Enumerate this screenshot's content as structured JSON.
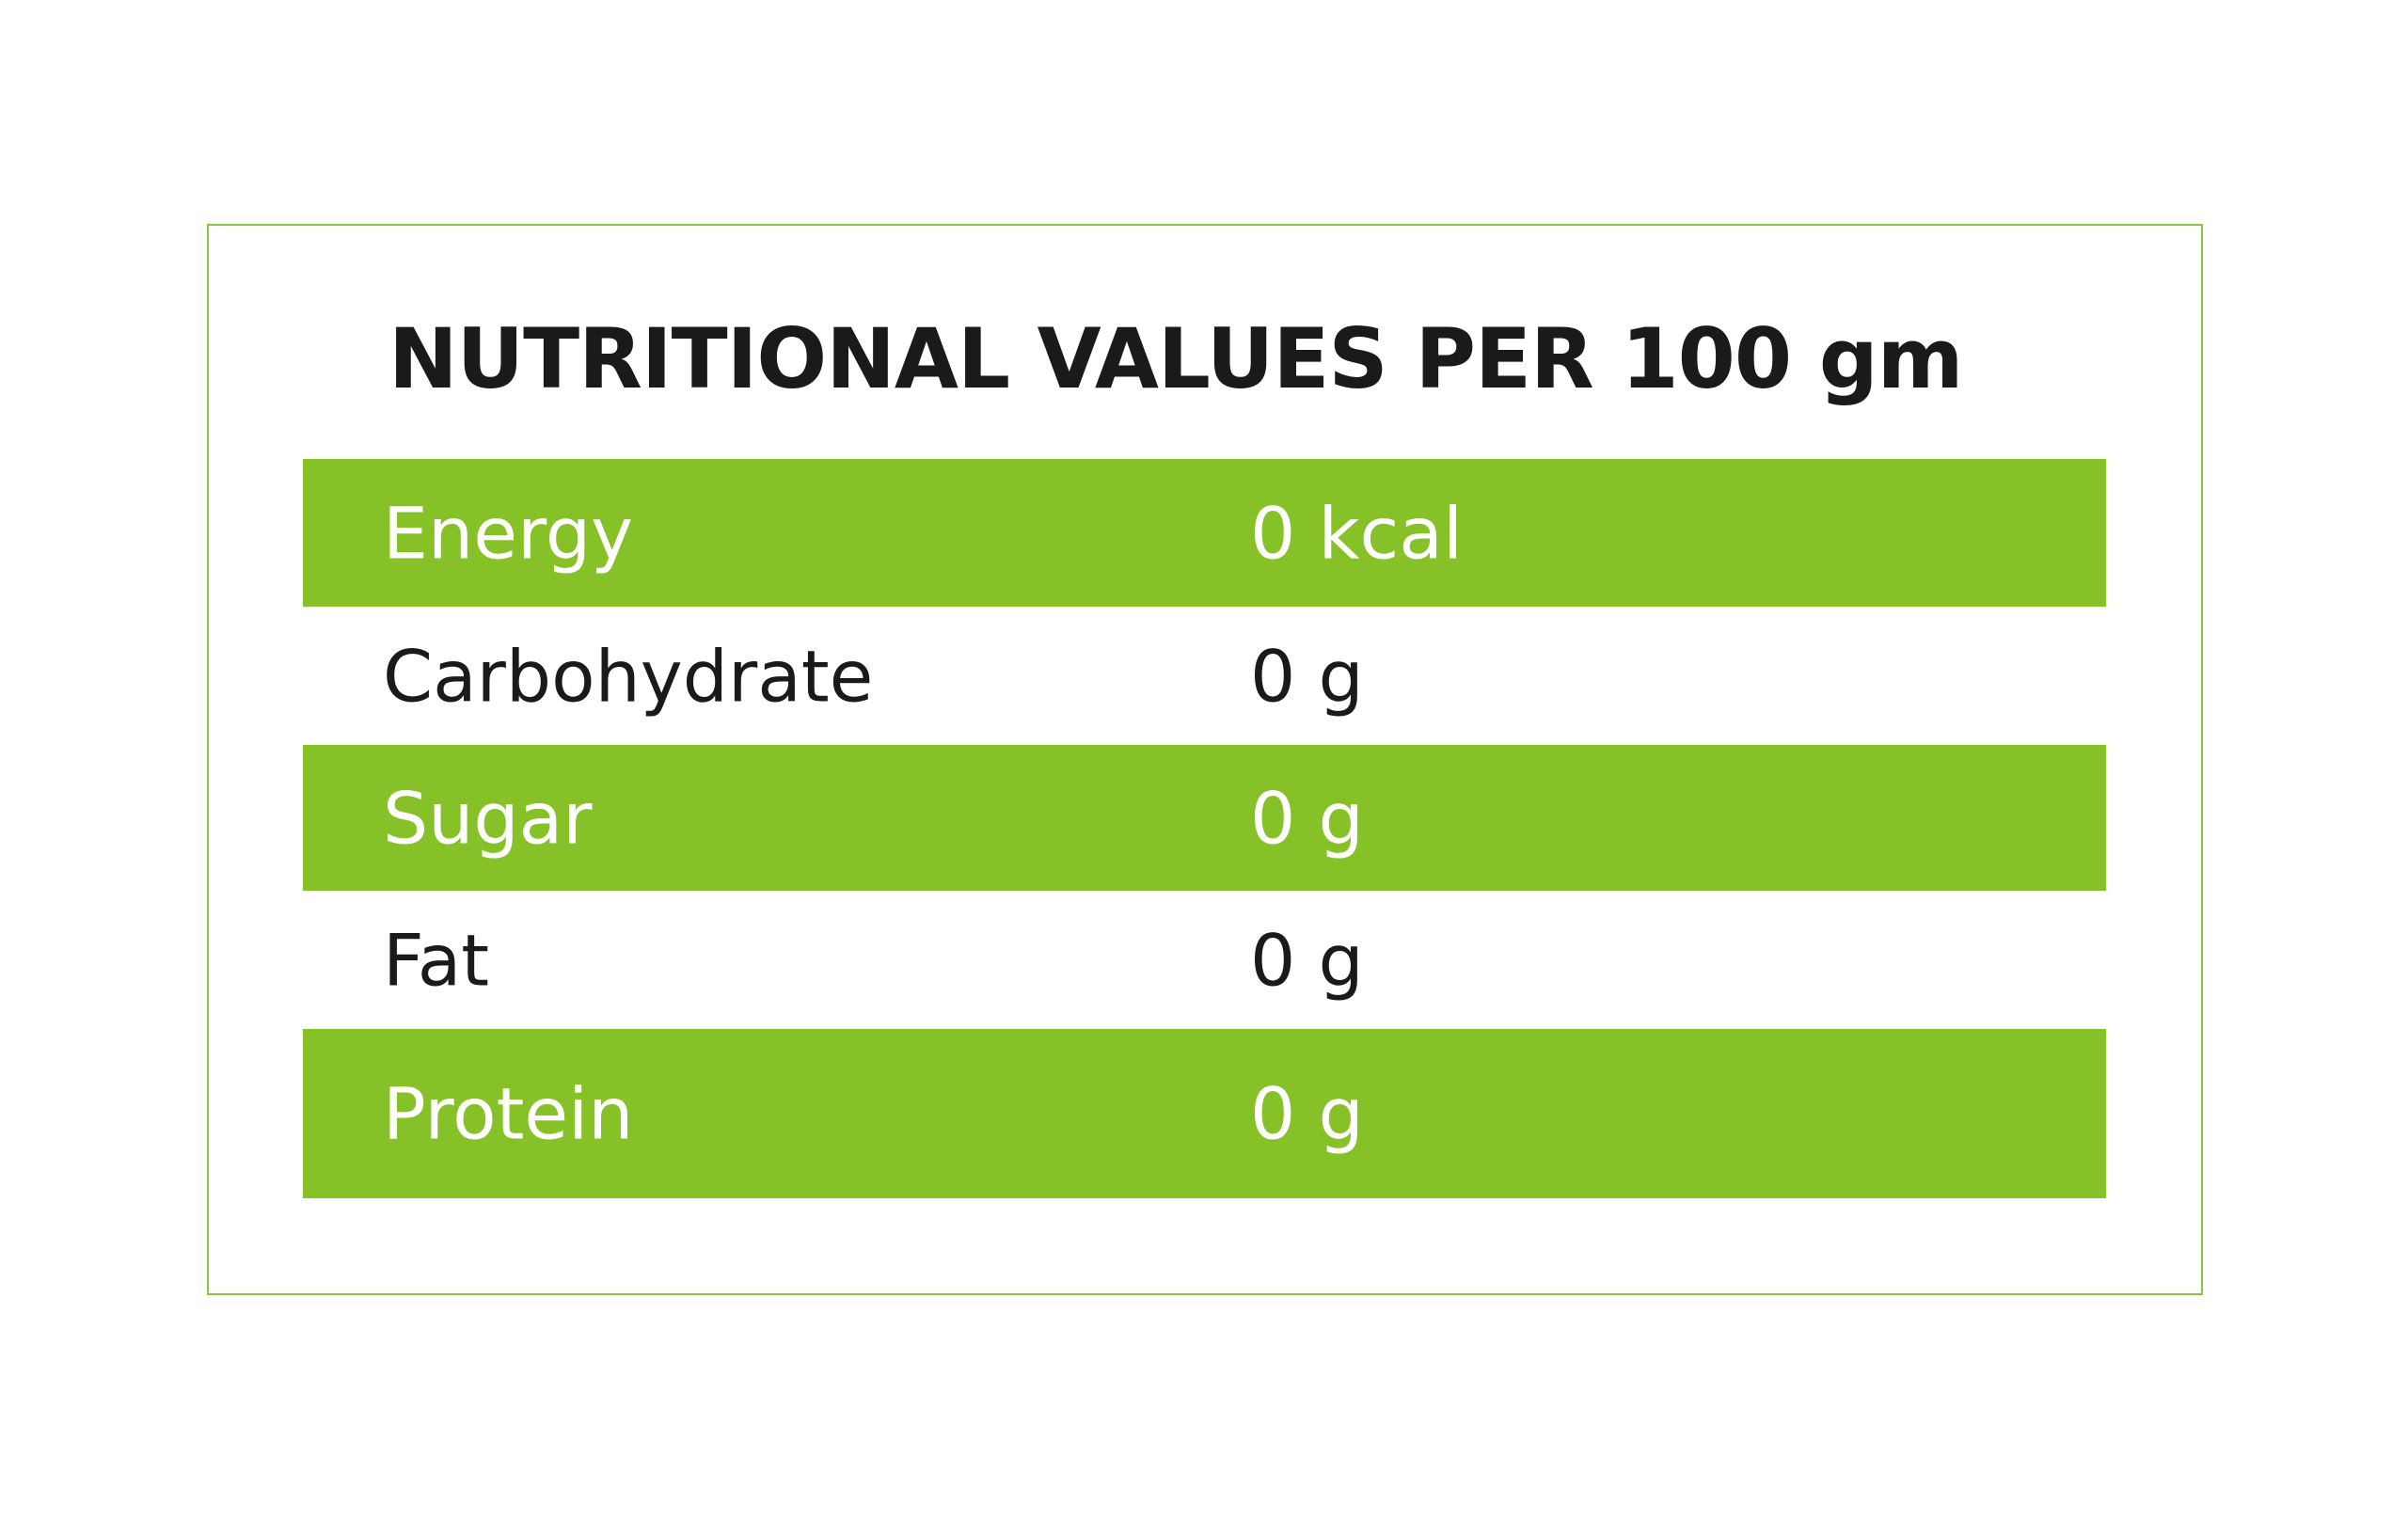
{
  "header": {
    "title": "NUTRITIONAL VALUES PER 100 gm"
  },
  "table": {
    "rows": [
      [
        "Energy",
        "0 kcal"
      ],
      [
        "Carbohydrate",
        "0 g"
      ],
      [
        "Sugar",
        "0 g"
      ],
      [
        "Fat",
        "0 g"
      ],
      [
        "Protein",
        "0 g"
      ]
    ]
  }
}
